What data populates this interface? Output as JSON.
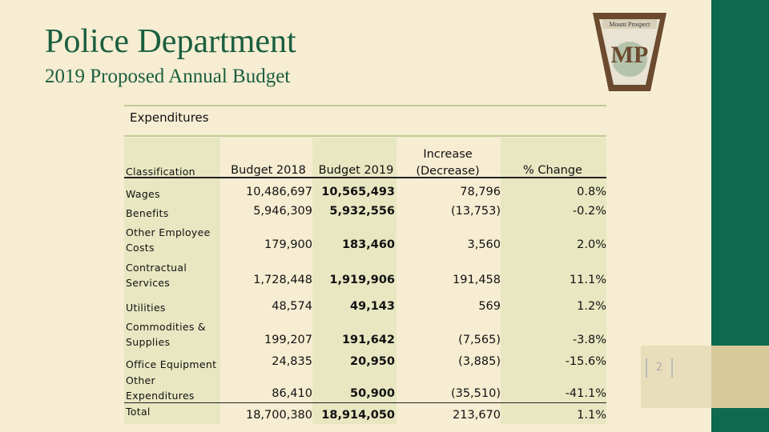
{
  "header": {
    "title": "Police Department",
    "subtitle": "2019 Proposed Annual Budget"
  },
  "logo": {
    "top": "Mount Prospect",
    "mark": "MP"
  },
  "page_number": "2",
  "table": {
    "caption": "Expenditures",
    "columns": [
      "Classification",
      "Budget 2018",
      "Budget 2019",
      "Increase (Decrease)",
      "% Change"
    ],
    "rows": [
      [
        "Wages",
        "10,486,697",
        "10,565,493",
        "78,796",
        "0.8%"
      ],
      [
        "Benefits",
        "5,946,309",
        "5,932,556",
        "(13,753)",
        "-0.2%"
      ],
      [
        "Other Employee Costs",
        "179,900",
        "183,460",
        "3,560",
        "2.0%"
      ],
      [
        "Contractual Services",
        "1,728,448",
        "1,919,906",
        "191,458",
        "11.1%"
      ],
      [
        "Utilities",
        "48,574",
        "49,143",
        "569",
        "1.2%"
      ],
      [
        "Commodities & Supplies",
        "199,207",
        "191,642",
        "(7,565)",
        "-3.8%"
      ],
      [
        "Office Equipment",
        "24,835",
        "20,950",
        "(3,885)",
        "-15.6%"
      ],
      [
        "Other Expenditures",
        "86,410",
        "50,900",
        "(35,510)",
        "-41.1%"
      ],
      [
        "Total",
        "18,700,380",
        "18,914,050",
        "213,670",
        "1.1%"
      ]
    ]
  }
}
